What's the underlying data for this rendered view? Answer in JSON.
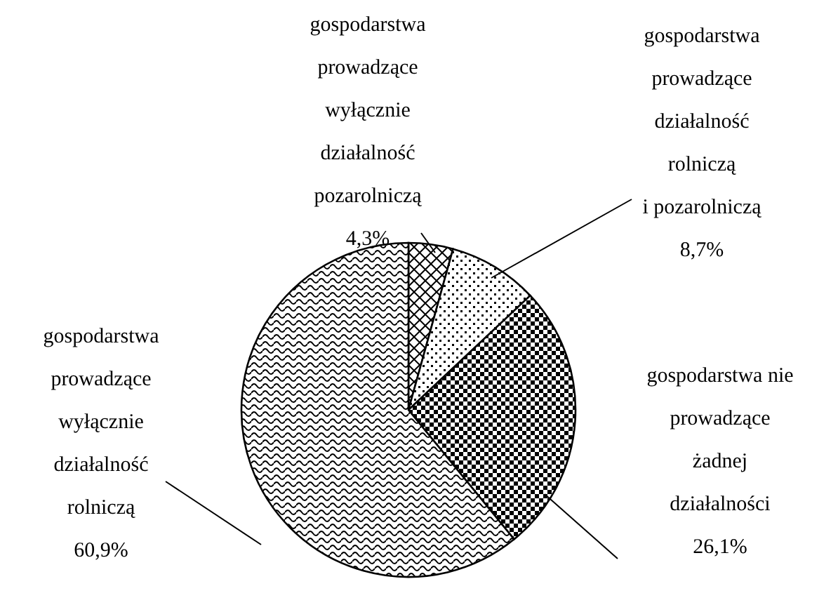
{
  "chart_data": {
    "type": "pie",
    "categories": [
      "gospodarstwa\nprowadzące\nwyłącznie\ndziałalność\npozarolniczą",
      "gospodarstwa\nprowadzące\ndziałalność\nrolniczą\ni pozarolniczą",
      "gospodarstwa nie\nprowadzące\nżadnej\ndziałalności",
      "gospodarstwa\nprowadzące\nwyłącznie\ndziałalność\nrolniczą"
    ],
    "values": [
      4.3,
      8.7,
      26.1,
      60.9
    ],
    "value_labels": [
      "4,3%",
      "8,7%",
      "26,1%",
      "60,9%"
    ]
  }
}
